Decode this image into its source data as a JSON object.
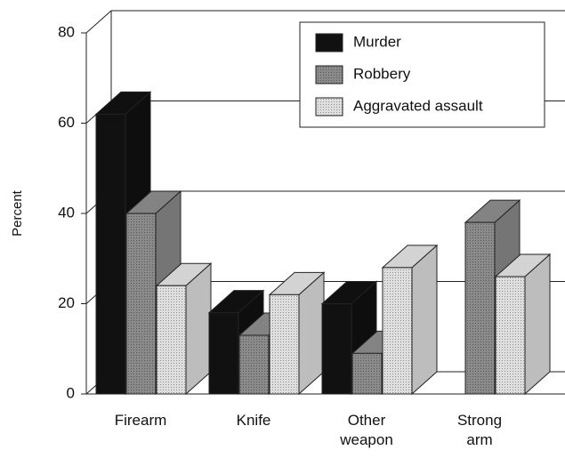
{
  "chart_data": {
    "type": "bar3d",
    "y_label": "Percent",
    "categories": [
      "Firearm",
      "Knife",
      "Other weapon",
      "Strong arm"
    ],
    "series": [
      {
        "name": "Murder",
        "color": "#111111",
        "values": [
          62,
          18,
          20,
          null
        ]
      },
      {
        "name": "Robbery",
        "color": "#8a8a8a",
        "values": [
          40,
          13,
          9,
          38
        ]
      },
      {
        "name": "Aggravated assault",
        "color": "#dedede",
        "values": [
          24,
          22,
          28,
          26
        ]
      }
    ],
    "ylim": [
      0,
      80
    ],
    "yticks": [
      0,
      20,
      40,
      60,
      80
    ],
    "grid": true,
    "legend": "top-right"
  }
}
